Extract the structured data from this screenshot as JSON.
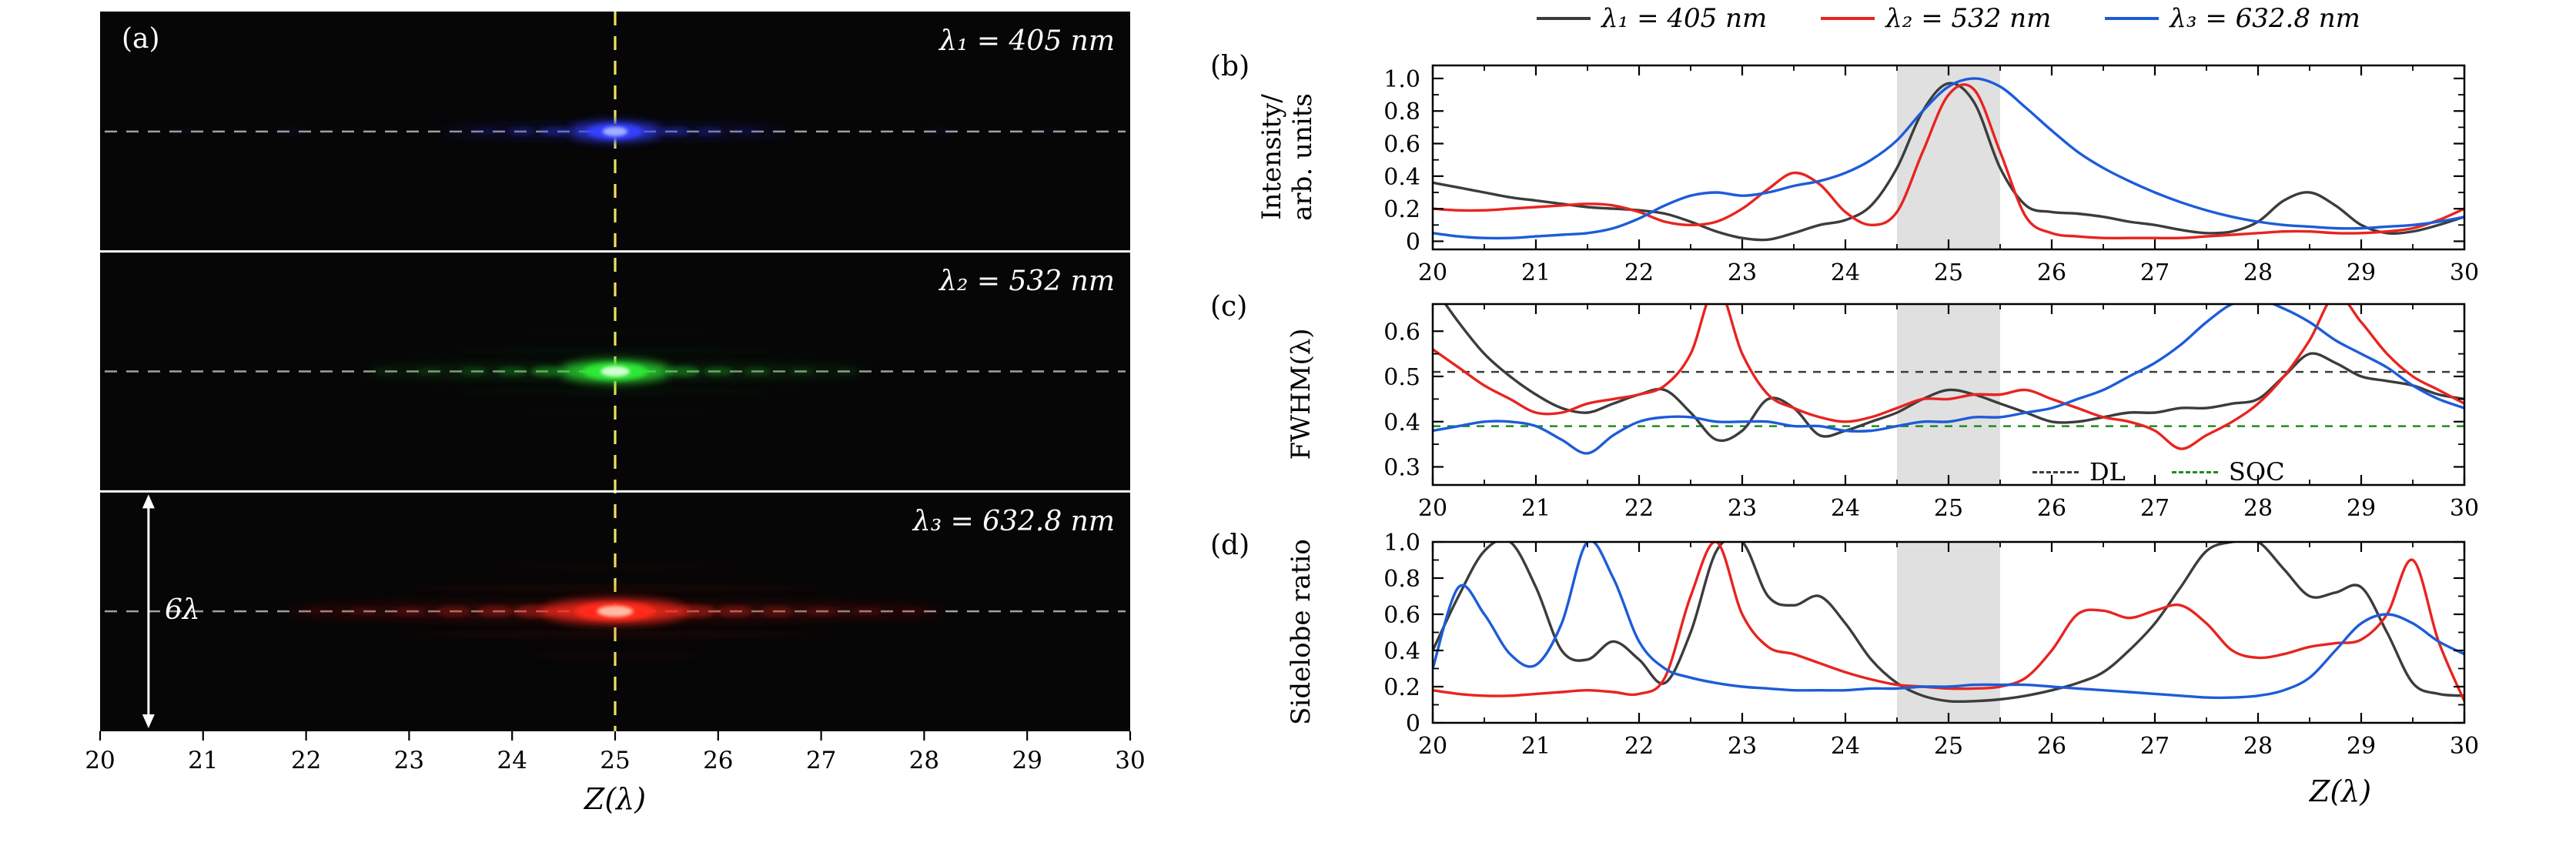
{
  "colors": {
    "lambda1": "#3c3c3c",
    "lambda2": "#e82420",
    "lambda3": "#1d5cd8",
    "band": "#d8d8d8",
    "yellow_line": "#ece25e",
    "gray_dash": "#bdbdb4"
  },
  "legend": {
    "items": [
      {
        "label": "λ₁ = 405 nm",
        "color": "#3c3c3c"
      },
      {
        "label": "λ₂ = 532 nm",
        "color": "#e82420"
      },
      {
        "label": "λ₃ = 632.8 nm",
        "color": "#1d5cd8"
      }
    ]
  },
  "panel_a": {
    "label": "(a)",
    "xlabel": "Z(λ)",
    "annotation": "6λ",
    "xticks": [
      20,
      21,
      22,
      23,
      24,
      25,
      26,
      27,
      28,
      29,
      30
    ],
    "focus_z": 25,
    "sub_panels": [
      {
        "label": "λ₁ = 405 nm",
        "dim": "#1a1fae",
        "bright": "#3640ff",
        "inner": "#aab6ff",
        "streak": [
          230,
          8,
          0.3
        ],
        "mid": [
          60,
          13,
          0.7
        ],
        "core": [
          36,
          10
        ],
        "lobes": [
          [
            78,
            20,
            6,
            0.3
          ],
          [
            122,
            18,
            6,
            0.18
          ],
          [
            170,
            16,
            5,
            0.1
          ],
          [
            420,
            22,
            5,
            0.07
          ],
          [
            560,
            20,
            5,
            0.05
          ]
        ],
        "rows": []
      },
      {
        "label": "λ₂ = 532 nm",
        "dim": "#12691a",
        "bright": "#2ee836",
        "inner": "#dcffdc",
        "streak": [
          330,
          9,
          0.32
        ],
        "mid": [
          72,
          15,
          0.75
        ],
        "core": [
          42,
          11
        ],
        "lobes": [
          [
            88,
            22,
            7,
            0.3
          ],
          [
            134,
            20,
            6,
            0.2
          ],
          [
            184,
            18,
            6,
            0.13
          ],
          [
            242,
            16,
            5,
            0.09
          ],
          [
            300,
            14,
            5,
            0.06
          ]
        ],
        "rows": [
          [
            26,
            210,
            4,
            0.1
          ],
          [
            52,
            130,
            3,
            0.06
          ]
        ]
      },
      {
        "label": "λ₃ = 632.8 nm",
        "dim": "#8f0f0a",
        "bright": "#ff2b1a",
        "inner": "#ffc4aa",
        "streak": [
          430,
          10,
          0.38
        ],
        "mid": [
          95,
          16,
          0.8
        ],
        "core": [
          52,
          12
        ],
        "lobes": [
          [
            105,
            26,
            8,
            0.35
          ],
          [
            155,
            24,
            7,
            0.25
          ],
          [
            210,
            22,
            7,
            0.18
          ],
          [
            268,
            20,
            6,
            0.12
          ],
          [
            328,
            18,
            6,
            0.08
          ],
          [
            388,
            16,
            5,
            0.06
          ]
        ],
        "rows": [
          [
            30,
            270,
            5,
            0.12
          ],
          [
            58,
            170,
            4,
            0.07
          ]
        ]
      }
    ]
  },
  "chart_data": [
    {
      "id": "b",
      "panel_label": "(b)",
      "type": "line",
      "ylabel_lines": [
        "Intensity/",
        "arb. units"
      ],
      "xlim": [
        20,
        30
      ],
      "ylim": [
        -0.05,
        1.08
      ],
      "x_start": 20,
      "x_step": 0.25,
      "xticks": [
        20,
        21,
        22,
        23,
        24,
        25,
        26,
        27,
        28,
        29,
        30
      ],
      "yticks": [
        [
          0,
          "0"
        ],
        [
          0.2,
          "0.2"
        ],
        [
          0.4,
          "0.4"
        ],
        [
          0.6,
          "0.6"
        ],
        [
          0.8,
          "0.8"
        ],
        [
          1,
          "1.0"
        ]
      ],
      "band": [
        24.5,
        25.5
      ],
      "series": [
        {
          "name": "λ₁ = 405 nm",
          "color": "#3c3c3c",
          "values": [
            0.36,
            0.33,
            0.3,
            0.27,
            0.25,
            0.23,
            0.21,
            0.2,
            0.19,
            0.17,
            0.12,
            0.06,
            0.02,
            0.01,
            0.05,
            0.1,
            0.13,
            0.22,
            0.45,
            0.8,
            0.97,
            0.85,
            0.45,
            0.22,
            0.18,
            0.17,
            0.15,
            0.12,
            0.1,
            0.07,
            0.05,
            0.06,
            0.12,
            0.25,
            0.3,
            0.22,
            0.1,
            0.05,
            0.06,
            0.1,
            0.15
          ]
        },
        {
          "name": "λ₂ = 532 nm",
          "color": "#e82420",
          "values": [
            0.2,
            0.19,
            0.19,
            0.2,
            0.21,
            0.22,
            0.23,
            0.22,
            0.18,
            0.12,
            0.1,
            0.12,
            0.2,
            0.32,
            0.42,
            0.35,
            0.18,
            0.1,
            0.18,
            0.55,
            0.9,
            0.93,
            0.55,
            0.15,
            0.05,
            0.03,
            0.02,
            0.02,
            0.02,
            0.02,
            0.03,
            0.04,
            0.05,
            0.06,
            0.06,
            0.05,
            0.05,
            0.06,
            0.08,
            0.13,
            0.2
          ]
        },
        {
          "name": "λ₃ = 632.8 nm",
          "color": "#1d5cd8",
          "values": [
            0.05,
            0.03,
            0.02,
            0.02,
            0.03,
            0.04,
            0.05,
            0.08,
            0.14,
            0.22,
            0.28,
            0.3,
            0.28,
            0.3,
            0.34,
            0.37,
            0.42,
            0.5,
            0.62,
            0.8,
            0.95,
            1.0,
            0.95,
            0.82,
            0.68,
            0.55,
            0.45,
            0.37,
            0.3,
            0.24,
            0.19,
            0.15,
            0.12,
            0.1,
            0.09,
            0.08,
            0.08,
            0.09,
            0.1,
            0.12,
            0.15
          ]
        }
      ]
    },
    {
      "id": "c",
      "panel_label": "(c)",
      "type": "line",
      "ylabel": "FWHM(λ)",
      "xlim": [
        20,
        30
      ],
      "ylim": [
        0.26,
        0.66
      ],
      "x_start": 20,
      "x_step": 0.25,
      "xticks": [
        20,
        21,
        22,
        23,
        24,
        25,
        26,
        27,
        28,
        29,
        30
      ],
      "yticks": [
        [
          0.3,
          "0.3"
        ],
        [
          0.4,
          "0.4"
        ],
        [
          0.5,
          "0.5"
        ],
        [
          0.6,
          "0.6"
        ]
      ],
      "band": [
        24.5,
        25.5
      ],
      "hlines": [
        {
          "label": "DL",
          "y": 0.51,
          "color": "#3c3c3c"
        },
        {
          "label": "SOC",
          "y": 0.39,
          "color": "#1e8c1e"
        }
      ],
      "series": [
        {
          "name": "λ₁ = 405 nm",
          "color": "#3c3c3c",
          "values": [
            0.7,
            0.62,
            0.55,
            0.5,
            0.46,
            0.43,
            0.42,
            0.44,
            0.46,
            0.47,
            0.42,
            0.36,
            0.38,
            0.45,
            0.43,
            0.37,
            0.38,
            0.4,
            0.42,
            0.45,
            0.47,
            0.46,
            0.44,
            0.42,
            0.4,
            0.4,
            0.41,
            0.42,
            0.42,
            0.43,
            0.43,
            0.44,
            0.45,
            0.5,
            0.55,
            0.53,
            0.5,
            0.49,
            0.48,
            0.46,
            0.45
          ]
        },
        {
          "name": "λ₂ = 532 nm",
          "color": "#e82420",
          "values": [
            0.56,
            0.52,
            0.48,
            0.45,
            0.42,
            0.42,
            0.44,
            0.45,
            0.46,
            0.48,
            0.55,
            0.7,
            0.55,
            0.46,
            0.43,
            0.41,
            0.4,
            0.41,
            0.43,
            0.45,
            0.45,
            0.46,
            0.46,
            0.47,
            0.45,
            0.43,
            0.41,
            0.4,
            0.38,
            0.34,
            0.37,
            0.4,
            0.44,
            0.5,
            0.58,
            0.68,
            0.62,
            0.55,
            0.5,
            0.47,
            0.44
          ]
        },
        {
          "name": "λ₃ = 632.8 nm",
          "color": "#1d5cd8",
          "values": [
            0.38,
            0.39,
            0.4,
            0.4,
            0.39,
            0.36,
            0.33,
            0.37,
            0.4,
            0.41,
            0.41,
            0.4,
            0.4,
            0.4,
            0.39,
            0.39,
            0.38,
            0.38,
            0.39,
            0.4,
            0.4,
            0.41,
            0.41,
            0.42,
            0.43,
            0.45,
            0.47,
            0.5,
            0.53,
            0.57,
            0.62,
            0.66,
            0.67,
            0.65,
            0.62,
            0.58,
            0.55,
            0.52,
            0.48,
            0.45,
            0.43
          ]
        }
      ]
    },
    {
      "id": "d",
      "panel_label": "(d)",
      "type": "line",
      "ylabel": "Sidelobe ratio",
      "xlabel": "Z(λ)",
      "xlim": [
        20,
        30
      ],
      "ylim": [
        0,
        1
      ],
      "x_start": 20,
      "x_step": 0.25,
      "xticks": [
        20,
        21,
        22,
        23,
        24,
        25,
        26,
        27,
        28,
        29,
        30
      ],
      "yticks": [
        [
          0,
          "0"
        ],
        [
          0.2,
          "0.2"
        ],
        [
          0.4,
          "0.4"
        ],
        [
          0.6,
          "0.6"
        ],
        [
          0.8,
          "0.8"
        ],
        [
          1,
          "1.0"
        ]
      ],
      "band": [
        24.5,
        25.5
      ],
      "series": [
        {
          "name": "λ₁ = 405 nm",
          "color": "#3c3c3c",
          "values": [
            0.4,
            0.7,
            0.95,
            1.0,
            0.75,
            0.4,
            0.35,
            0.45,
            0.35,
            0.22,
            0.5,
            0.95,
            1.0,
            0.7,
            0.65,
            0.7,
            0.55,
            0.35,
            0.22,
            0.15,
            0.12,
            0.12,
            0.13,
            0.15,
            0.18,
            0.22,
            0.28,
            0.4,
            0.55,
            0.75,
            0.95,
            1.0,
            1.0,
            0.85,
            0.7,
            0.72,
            0.75,
            0.5,
            0.22,
            0.16,
            0.15
          ]
        },
        {
          "name": "λ₂ = 532 nm",
          "color": "#e82420",
          "values": [
            0.18,
            0.16,
            0.15,
            0.15,
            0.16,
            0.17,
            0.18,
            0.17,
            0.16,
            0.25,
            0.7,
            1.0,
            0.6,
            0.42,
            0.38,
            0.33,
            0.28,
            0.24,
            0.21,
            0.2,
            0.19,
            0.19,
            0.2,
            0.25,
            0.4,
            0.6,
            0.62,
            0.58,
            0.62,
            0.65,
            0.55,
            0.4,
            0.36,
            0.38,
            0.42,
            0.44,
            0.46,
            0.6,
            0.9,
            0.45,
            0.12
          ]
        },
        {
          "name": "λ₃ = 632.8 nm",
          "color": "#1d5cd8",
          "values": [
            0.3,
            0.75,
            0.6,
            0.38,
            0.32,
            0.55,
            1.0,
            0.8,
            0.45,
            0.3,
            0.25,
            0.22,
            0.2,
            0.19,
            0.18,
            0.18,
            0.18,
            0.19,
            0.19,
            0.2,
            0.2,
            0.21,
            0.21,
            0.21,
            0.2,
            0.19,
            0.18,
            0.17,
            0.16,
            0.15,
            0.14,
            0.14,
            0.15,
            0.18,
            0.25,
            0.4,
            0.55,
            0.6,
            0.55,
            0.45,
            0.38
          ]
        }
      ]
    }
  ]
}
